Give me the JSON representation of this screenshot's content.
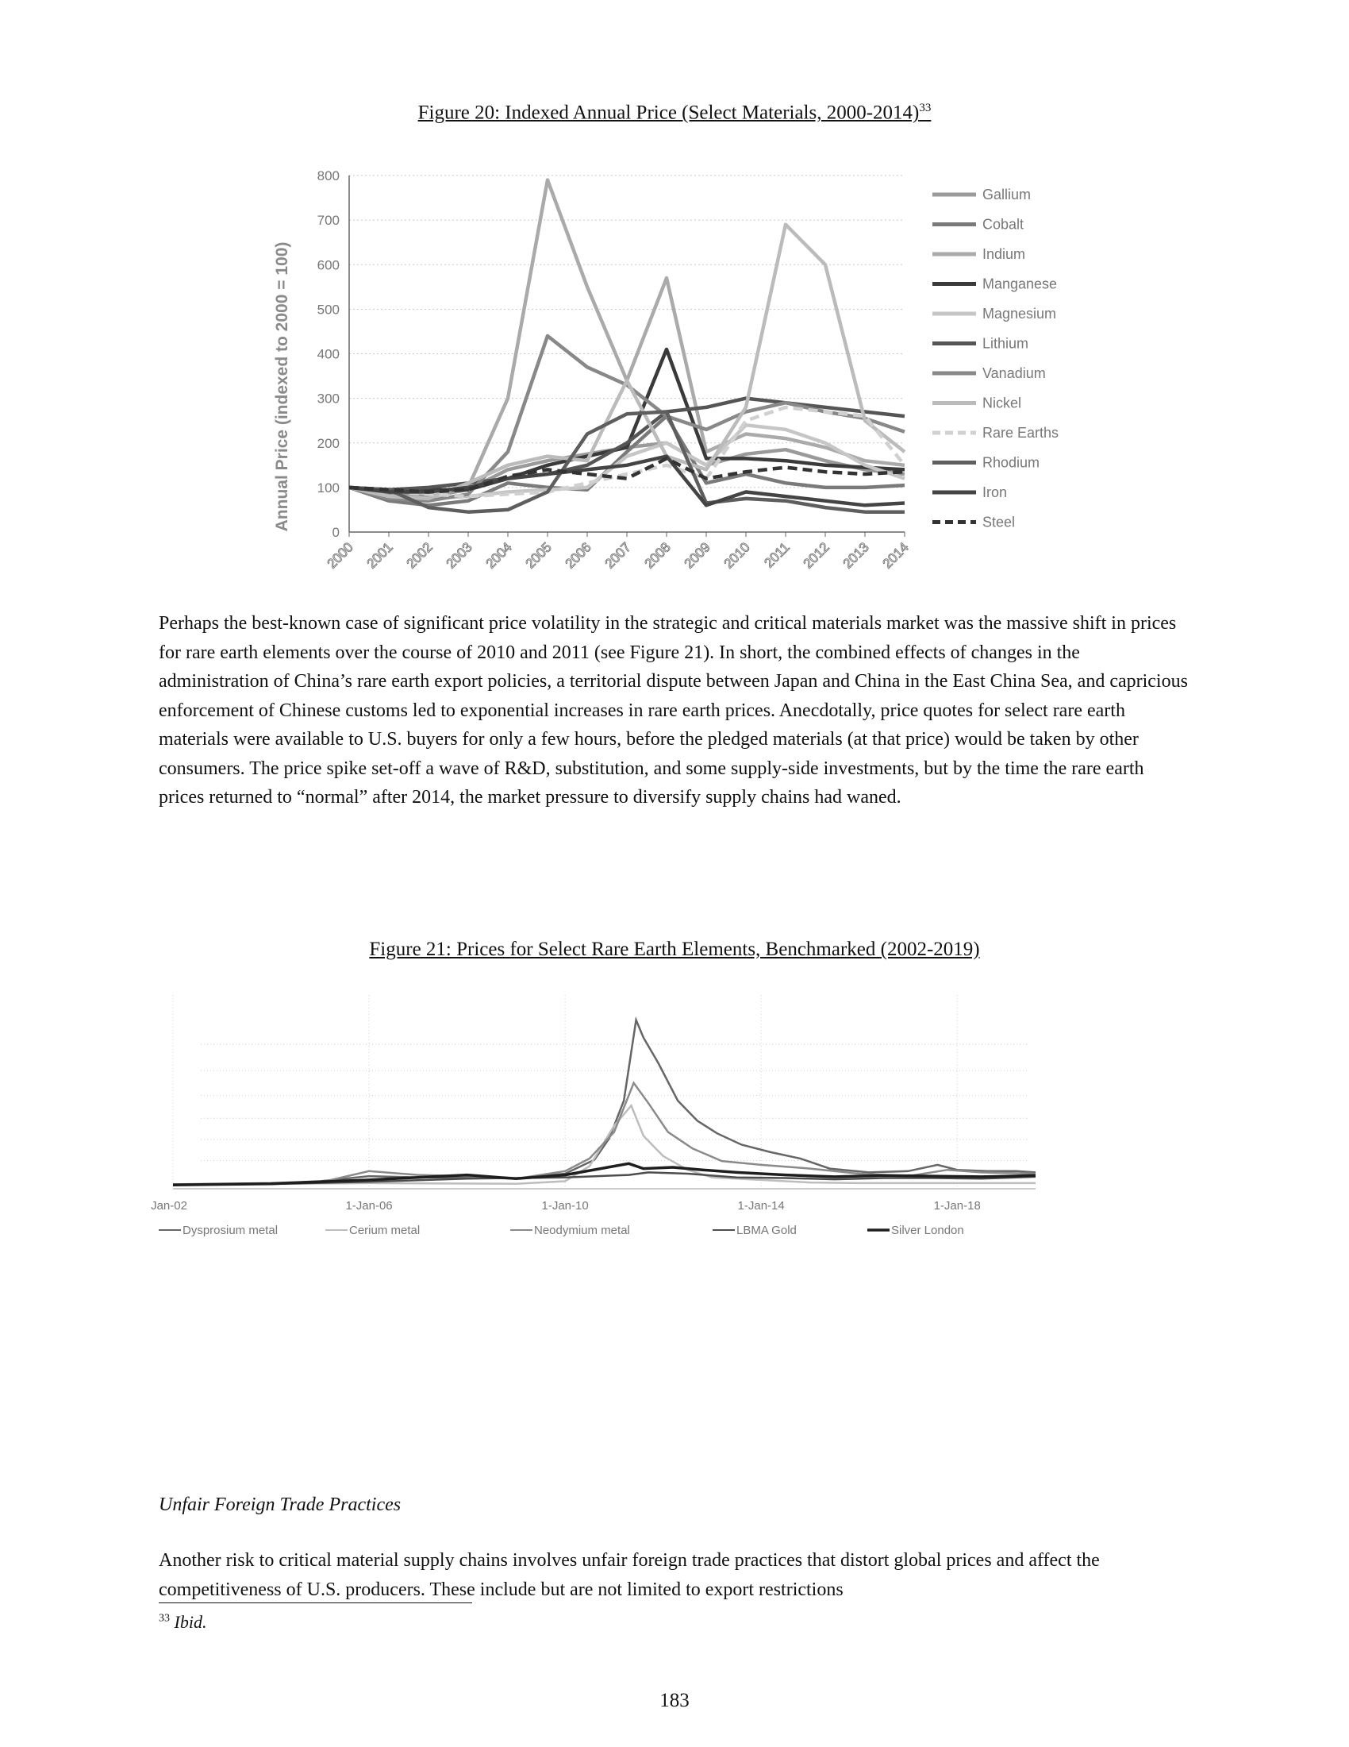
{
  "figure20": {
    "caption": "Figure 20: Indexed Annual Price (Select Materials, 2000-2014)",
    "caption_sup": "33",
    "chart_data": {
      "type": "line",
      "title": "",
      "xlabel": "",
      "ylabel": "Annual Price (indexed to 2000 = 100)",
      "ylim": [
        0,
        800
      ],
      "yticks": [
        0,
        100,
        200,
        300,
        400,
        500,
        600,
        700,
        800
      ],
      "grid": true,
      "legend_position": "right",
      "categories": [
        "2000",
        "2001",
        "2002",
        "2003",
        "2004",
        "2005",
        "2006",
        "2007",
        "2008",
        "2009",
        "2010",
        "2011",
        "2012",
        "2013",
        "2014"
      ],
      "series": [
        {
          "name": "Gallium",
          "color": "#9a9a9a",
          "dash": "solid",
          "values": [
            100,
            85,
            80,
            95,
            140,
            160,
            175,
            190,
            200,
            150,
            175,
            185,
            160,
            140,
            130
          ]
        },
        {
          "name": "Cobalt",
          "color": "#7a7a7a",
          "dash": "solid",
          "values": [
            100,
            70,
            60,
            70,
            110,
            100,
            95,
            180,
            260,
            110,
            130,
            110,
            100,
            100,
            105
          ]
        },
        {
          "name": "Indium",
          "color": "#aaaaaa",
          "dash": "solid",
          "values": [
            100,
            95,
            90,
            100,
            300,
            790,
            550,
            340,
            570,
            180,
            220,
            210,
            190,
            160,
            150
          ]
        },
        {
          "name": "Manganese",
          "color": "#3a3a3a",
          "dash": "solid",
          "values": [
            100,
            90,
            95,
            95,
            120,
            150,
            170,
            190,
            410,
            165,
            165,
            160,
            150,
            145,
            140
          ]
        },
        {
          "name": "Magnesium",
          "color": "#c6c6c6",
          "dash": "solid",
          "values": [
            100,
            80,
            75,
            80,
            90,
            95,
            100,
            170,
            200,
            150,
            240,
            230,
            200,
            150,
            120
          ]
        },
        {
          "name": "Lithium",
          "color": "#555555",
          "dash": "solid",
          "values": [
            100,
            95,
            100,
            110,
            120,
            130,
            150,
            200,
            270,
            280,
            300,
            290,
            280,
            270,
            260
          ]
        },
        {
          "name": "Vanadium",
          "color": "#888888",
          "dash": "solid",
          "values": [
            100,
            75,
            70,
            85,
            180,
            440,
            370,
            330,
            260,
            230,
            270,
            290,
            270,
            255,
            225
          ]
        },
        {
          "name": "Nickel",
          "color": "#bbbbbb",
          "dash": "solid",
          "values": [
            100,
            80,
            75,
            110,
            150,
            170,
            160,
            340,
            170,
            140,
            280,
            690,
            600,
            250,
            180
          ]
        },
        {
          "name": "Rare Earths",
          "color": "#d0d0d0",
          "dash": "dashed",
          "values": [
            100,
            90,
            85,
            80,
            85,
            90,
            110,
            130,
            150,
            120,
            250,
            280,
            270,
            260,
            150
          ]
        },
        {
          "name": "Rhodium",
          "color": "#5e5e5e",
          "dash": "solid",
          "values": [
            100,
            95,
            55,
            45,
            50,
            90,
            220,
            265,
            270,
            65,
            75,
            70,
            55,
            45,
            45
          ]
        },
        {
          "name": "Iron",
          "color": "#444444",
          "dash": "solid",
          "values": [
            100,
            90,
            90,
            100,
            120,
            130,
            140,
            150,
            170,
            60,
            90,
            80,
            70,
            60,
            65
          ]
        },
        {
          "name": "Steel",
          "color": "#333333",
          "dash": "dashed",
          "values": [
            100,
            95,
            90,
            95,
            125,
            140,
            130,
            120,
            165,
            120,
            135,
            145,
            135,
            130,
            135
          ]
        }
      ]
    }
  },
  "paragraph1": "Perhaps the best-known case of significant price volatility in the strategic and critical materials market was the massive shift in prices for rare earth elements over the course of 2010 and 2011 (see Figure 21).  In short, the combined effects of changes in the administration of China’s rare earth export policies, a territorial dispute between Japan and China in the East China Sea, and capricious enforcement of Chinese customs led to exponential increases in rare earth prices.  Anecdotally, price quotes for select rare earth materials were available to U.S. buyers for only a few hours, before the pledged materials (at that price) would be taken by other consumers.  The price spike set-off a wave of R&D, substitution, and some supply-side investments, but by the time the rare earth prices returned to “normal” after 2014, the market pressure to diversify supply chains had waned.",
  "figure21": {
    "caption": "Figure 21: Prices for Select Rare Earth Elements, Benchmarked (2002-2019)",
    "chart_data": {
      "type": "line",
      "title": "",
      "xlabel": "",
      "ylabel": "",
      "xticks": [
        "Jan-02",
        "1-Jan-06",
        "1-Jan-10",
        "1-Jan-14",
        "1-Jan-18"
      ],
      "x_start": 2002.0,
      "x_end": 2019.6,
      "ylim": [
        0,
        14
      ],
      "legend_position": "bottom",
      "series": [
        {
          "name": "Dysprosium metal",
          "color": "#666666",
          "points": [
            [
              2002,
              0.35
            ],
            [
              2004,
              0.45
            ],
            [
              2005,
              0.6
            ],
            [
              2006,
              1.0
            ],
            [
              2007,
              0.9
            ],
            [
              2008,
              0.9
            ],
            [
              2009,
              0.8
            ],
            [
              2010,
              1.2
            ],
            [
              2010.6,
              2.3
            ],
            [
              2010.9,
              4.0
            ],
            [
              2011.2,
              7.0
            ],
            [
              2011.45,
              13.4
            ],
            [
              2011.6,
              12.0
            ],
            [
              2011.9,
              10.0
            ],
            [
              2012.3,
              7.0
            ],
            [
              2012.7,
              5.4
            ],
            [
              2013.1,
              4.4
            ],
            [
              2013.6,
              3.5
            ],
            [
              2014.2,
              2.9
            ],
            [
              2014.8,
              2.4
            ],
            [
              2015.4,
              1.6
            ],
            [
              2016.2,
              1.3
            ],
            [
              2017.0,
              1.4
            ],
            [
              2017.6,
              1.9
            ],
            [
              2018.0,
              1.5
            ],
            [
              2018.6,
              1.4
            ],
            [
              2019.2,
              1.4
            ],
            [
              2019.6,
              1.3
            ]
          ]
        },
        {
          "name": "Cerium metal",
          "color": "#bdbdbd",
          "points": [
            [
              2002,
              0.3
            ],
            [
              2006,
              0.45
            ],
            [
              2009,
              0.4
            ],
            [
              2010,
              0.6
            ],
            [
              2010.5,
              1.8
            ],
            [
              2011,
              5.0
            ],
            [
              2011.35,
              6.6
            ],
            [
              2011.6,
              4.2
            ],
            [
              2012,
              2.6
            ],
            [
              2012.5,
              1.5
            ],
            [
              2013,
              0.9
            ],
            [
              2014,
              0.7
            ],
            [
              2015,
              0.5
            ],
            [
              2016,
              0.45
            ],
            [
              2018,
              0.45
            ],
            [
              2019.6,
              0.45
            ]
          ]
        },
        {
          "name": "Neodymium metal",
          "color": "#8a8a8a",
          "points": [
            [
              2002,
              0.3
            ],
            [
              2004,
              0.4
            ],
            [
              2005,
              0.5
            ],
            [
              2006,
              1.4
            ],
            [
              2007,
              1.1
            ],
            [
              2008,
              1.0
            ],
            [
              2009,
              0.8
            ],
            [
              2010,
              1.4
            ],
            [
              2010.5,
              2.4
            ],
            [
              2011,
              4.5
            ],
            [
              2011.4,
              8.4
            ],
            [
              2011.7,
              6.8
            ],
            [
              2012.1,
              4.5
            ],
            [
              2012.6,
              3.2
            ],
            [
              2013.2,
              2.2
            ],
            [
              2014,
              1.9
            ],
            [
              2015,
              1.6
            ],
            [
              2016,
              1.2
            ],
            [
              2017,
              1.0
            ],
            [
              2017.8,
              1.5
            ],
            [
              2018.5,
              1.3
            ],
            [
              2019.6,
              1.2
            ]
          ]
        },
        {
          "name": "LBMA Gold",
          "color": "#4d4d4d",
          "points": [
            [
              2002,
              0.3
            ],
            [
              2004,
              0.38
            ],
            [
              2006,
              0.55
            ],
            [
              2008,
              0.8
            ],
            [
              2010,
              0.9
            ],
            [
              2011.3,
              1.1
            ],
            [
              2011.7,
              1.3
            ],
            [
              2012.5,
              1.2
            ],
            [
              2013.5,
              0.9
            ],
            [
              2014.5,
              0.85
            ],
            [
              2015.5,
              0.75
            ],
            [
              2016.5,
              0.85
            ],
            [
              2017.5,
              0.85
            ],
            [
              2018.5,
              0.8
            ],
            [
              2019.6,
              0.95
            ]
          ]
        },
        {
          "name": "Silver London",
          "color": "#1e1e1e",
          "points": [
            [
              2002,
              0.3
            ],
            [
              2004,
              0.4
            ],
            [
              2006,
              0.7
            ],
            [
              2007,
              0.9
            ],
            [
              2008,
              1.1
            ],
            [
              2009,
              0.8
            ],
            [
              2010,
              1.1
            ],
            [
              2011.3,
              2.0
            ],
            [
              2011.6,
              1.6
            ],
            [
              2012.2,
              1.7
            ],
            [
              2012.8,
              1.5
            ],
            [
              2013.5,
              1.3
            ],
            [
              2014.5,
              1.1
            ],
            [
              2015.5,
              0.95
            ],
            [
              2016.5,
              1.05
            ],
            [
              2017.5,
              1.0
            ],
            [
              2018.5,
              0.95
            ],
            [
              2019.6,
              1.05
            ]
          ]
        }
      ]
    }
  },
  "section_heading": "Unfair Foreign Trade Practices",
  "paragraph2": "Another risk to critical material supply chains involves unfair foreign trade practices that distort global prices and affect the competitiveness of U.S.  producers.  These include but are not limited to export restrictions",
  "footnote": {
    "number": "33",
    "text": "Ibid."
  },
  "page_number": "183"
}
